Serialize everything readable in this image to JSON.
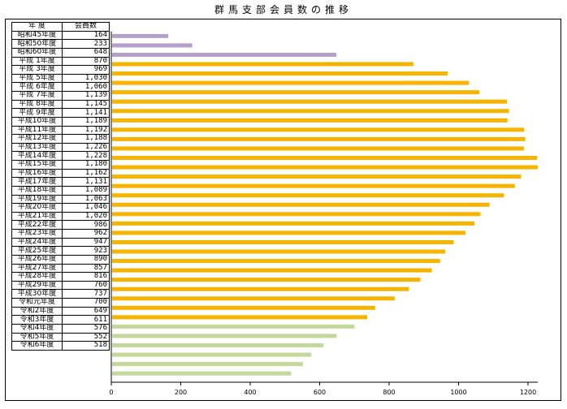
{
  "title": "群馬支部会員数の推移",
  "headers": {
    "year": "年 度",
    "count": "会員数"
  },
  "colors": {
    "showa": "#b4a0c8",
    "heisei": "#f5b400",
    "reiwa": "#c4d89a",
    "axis": "#000000"
  },
  "chart_data": {
    "type": "bar",
    "orientation": "horizontal",
    "title": "群馬支部会員数の推移",
    "xlim": [
      0,
      1200
    ],
    "xticks": [
      0,
      200,
      400,
      600,
      800,
      1000,
      1200
    ],
    "categories": [
      "昭和45年度",
      "昭和50年度",
      "昭和60年度",
      "平成 1年度",
      "平成 3年度",
      "平成 5年度",
      "平成 6年度",
      "平成 7年度",
      "平成 8年度",
      "平成 9年度",
      "平成10年度",
      "平成11年度",
      "平成12年度",
      "平成13年度",
      "平成14年度",
      "平成15年度",
      "平成16年度",
      "平成17年度",
      "平成18年度",
      "平成19年度",
      "平成20年度",
      "平成21年度",
      "平成22年度",
      "平成23年度",
      "平成24年度",
      "平成25年度",
      "平成26年度",
      "平成27年度",
      "平成28年度",
      "平成29年度",
      "平成30年度",
      "令和元年度",
      "令和2年度",
      "令和3年度",
      "令和4年度",
      "令和5年度",
      "令和6年度"
    ],
    "values": [
      164,
      233,
      648,
      870,
      969,
      1030,
      1060,
      1139,
      1145,
      1141,
      1189,
      1192,
      1188,
      1226,
      1228,
      1180,
      1162,
      1131,
      1089,
      1063,
      1046,
      1020,
      986,
      962,
      947,
      923,
      890,
      857,
      816,
      760,
      737,
      700,
      649,
      611,
      576,
      552,
      518
    ],
    "labels": [
      "164",
      "233",
      "648",
      "870",
      "969",
      "1,030",
      "1,060",
      "1,139",
      "1,145",
      "1,141",
      "1,189",
      "1,192",
      "1,188",
      "1,226",
      "1,228",
      "1,180",
      "1,162",
      "1,131",
      "1,089",
      "1,063",
      "1,046",
      "1,020",
      "986",
      "962",
      "947",
      "923",
      "890",
      "857",
      "816",
      "760",
      "737",
      "700",
      "649",
      "611",
      "576",
      "552",
      "518"
    ],
    "eras": [
      "showa",
      "showa",
      "showa",
      "heisei",
      "heisei",
      "heisei",
      "heisei",
      "heisei",
      "heisei",
      "heisei",
      "heisei",
      "heisei",
      "heisei",
      "heisei",
      "heisei",
      "heisei",
      "heisei",
      "heisei",
      "heisei",
      "heisei",
      "heisei",
      "heisei",
      "heisei",
      "heisei",
      "heisei",
      "heisei",
      "heisei",
      "heisei",
      "heisei",
      "heisei",
      "heisei",
      "reiwa",
      "reiwa",
      "reiwa",
      "reiwa",
      "reiwa",
      "reiwa"
    ],
    "grid": false,
    "legend": "none"
  }
}
